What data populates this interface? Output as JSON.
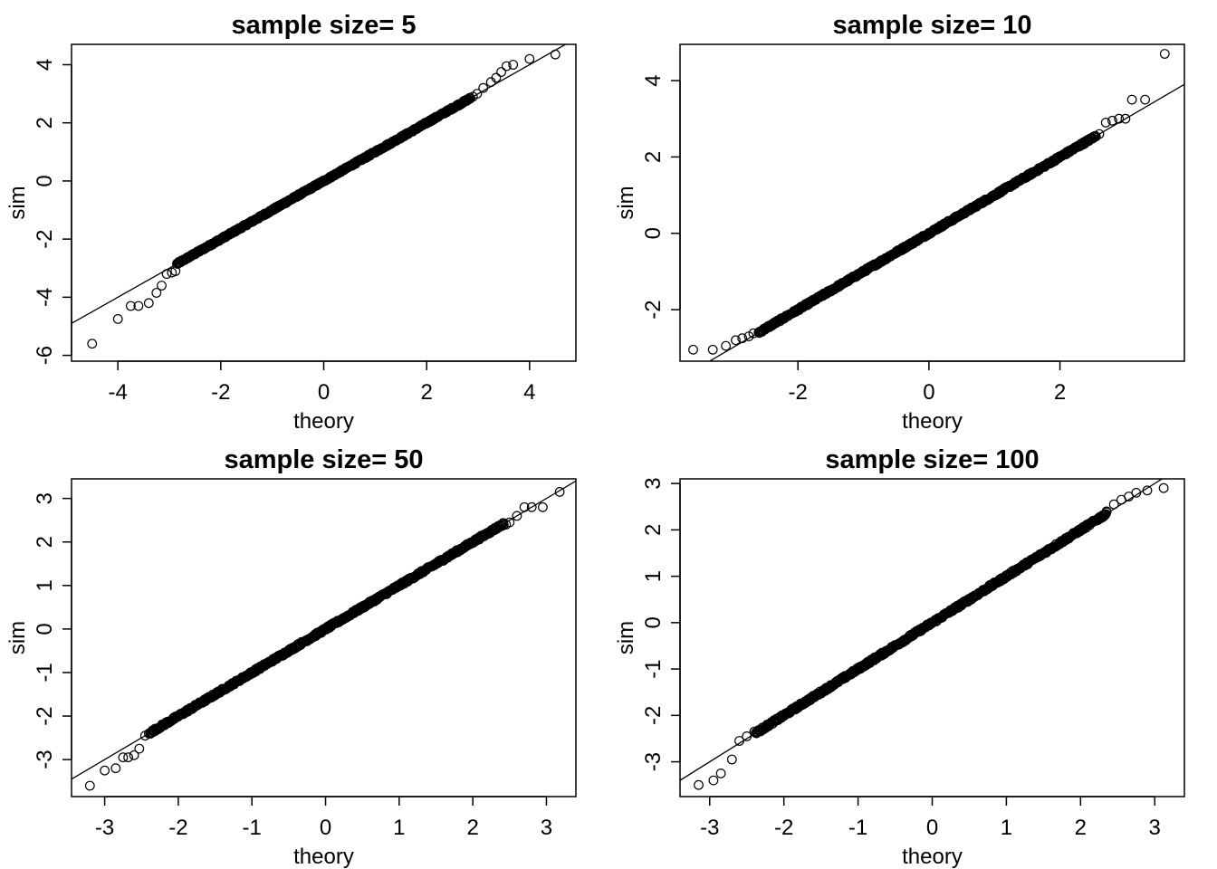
{
  "chart_data": [
    {
      "type": "scatter",
      "title": "sample size= 5",
      "xlabel": "theory",
      "ylabel": "sim",
      "xlim": [
        -4.9,
        4.9
      ],
      "ylim": [
        -6.2,
        4.7
      ],
      "xticks": [
        -4,
        -2,
        0,
        2,
        4
      ],
      "yticks": [
        -6,
        -4,
        -2,
        0,
        2,
        4
      ],
      "xtick_labels": [
        "-4",
        "-2",
        "0",
        "2",
        "4"
      ],
      "ytick_labels": [
        "-6",
        "-4",
        "-2",
        "0",
        "2",
        "4"
      ],
      "reference_line": {
        "intercept": 0.0,
        "slope": 1.0
      },
      "tail_points": [
        {
          "x": -4.5,
          "y": -5.6
        },
        {
          "x": -4.0,
          "y": -4.75
        },
        {
          "x": -3.75,
          "y": -4.3
        },
        {
          "x": -3.6,
          "y": -4.3
        },
        {
          "x": -3.4,
          "y": -4.2
        },
        {
          "x": -3.25,
          "y": -3.85
        },
        {
          "x": -3.15,
          "y": -3.6
        },
        {
          "x": -3.05,
          "y": -3.2
        },
        {
          "x": -2.95,
          "y": -3.15
        },
        {
          "x": -2.88,
          "y": -3.1
        },
        {
          "x": 2.9,
          "y": 2.9
        },
        {
          "x": 2.98,
          "y": 3.0
        },
        {
          "x": 3.1,
          "y": 3.2
        },
        {
          "x": 3.25,
          "y": 3.4
        },
        {
          "x": 3.35,
          "y": 3.55
        },
        {
          "x": 3.45,
          "y": 3.75
        },
        {
          "x": 3.55,
          "y": 3.95
        },
        {
          "x": 3.68,
          "y": 4.0
        },
        {
          "x": 4.0,
          "y": 4.2
        },
        {
          "x": 4.5,
          "y": 4.35
        }
      ],
      "body_range": [
        -2.85,
        2.85
      ]
    },
    {
      "type": "scatter",
      "title": "sample size= 10",
      "xlabel": "theory",
      "ylabel": "sim",
      "xlim": [
        -3.8,
        3.9
      ],
      "ylim": [
        -3.35,
        4.95
      ],
      "xticks": [
        -2,
        0,
        2
      ],
      "yticks": [
        -2,
        0,
        2,
        4
      ],
      "xtick_labels": [
        "-2",
        "0",
        "2"
      ],
      "ytick_labels": [
        "-2",
        "0",
        "2",
        "4"
      ],
      "reference_line": {
        "intercept": 0.0,
        "slope": 1.0
      },
      "tail_points": [
        {
          "x": -3.6,
          "y": -3.05
        },
        {
          "x": -3.3,
          "y": -3.05
        },
        {
          "x": -3.1,
          "y": -2.95
        },
        {
          "x": -2.95,
          "y": -2.8
        },
        {
          "x": -2.85,
          "y": -2.75
        },
        {
          "x": -2.75,
          "y": -2.7
        },
        {
          "x": -2.68,
          "y": -2.62
        },
        {
          "x": 2.6,
          "y": 2.6
        },
        {
          "x": 2.7,
          "y": 2.9
        },
        {
          "x": 2.8,
          "y": 2.95
        },
        {
          "x": 2.9,
          "y": 3.0
        },
        {
          "x": 3.0,
          "y": 3.0
        },
        {
          "x": 3.1,
          "y": 3.5
        },
        {
          "x": 3.3,
          "y": 3.5
        },
        {
          "x": 3.6,
          "y": 4.7
        }
      ],
      "body_range": [
        -2.6,
        2.55
      ]
    },
    {
      "type": "scatter",
      "title": "sample size= 50",
      "xlabel": "theory",
      "ylabel": "sim",
      "xlim": [
        -3.45,
        3.4
      ],
      "ylim": [
        -3.85,
        3.45
      ],
      "xticks": [
        -3,
        -2,
        -1,
        0,
        1,
        2,
        3
      ],
      "yticks": [
        -3,
        -2,
        -1,
        0,
        1,
        2,
        3
      ],
      "xtick_labels": [
        "-3",
        "-2",
        "-1",
        "0",
        "1",
        "2",
        "3"
      ],
      "ytick_labels": [
        "-3",
        "-2",
        "-1",
        "0",
        "1",
        "2",
        "3"
      ],
      "reference_line": {
        "intercept": 0.0,
        "slope": 1.0
      },
      "tail_points": [
        {
          "x": -3.2,
          "y": -3.6
        },
        {
          "x": -3.0,
          "y": -3.25
        },
        {
          "x": -2.85,
          "y": -3.2
        },
        {
          "x": -2.75,
          "y": -2.95
        },
        {
          "x": -2.68,
          "y": -2.95
        },
        {
          "x": -2.6,
          "y": -2.9
        },
        {
          "x": -2.53,
          "y": -2.75
        },
        {
          "x": -2.45,
          "y": -2.45
        },
        {
          "x": -2.4,
          "y": -2.4
        },
        {
          "x": 2.45,
          "y": 2.4
        },
        {
          "x": 2.5,
          "y": 2.45
        },
        {
          "x": 2.6,
          "y": 2.6
        },
        {
          "x": 2.7,
          "y": 2.8
        },
        {
          "x": 2.8,
          "y": 2.8
        },
        {
          "x": 2.95,
          "y": 2.8
        },
        {
          "x": 3.18,
          "y": 3.15
        }
      ],
      "body_range": [
        -2.38,
        2.42
      ]
    },
    {
      "type": "scatter",
      "title": "sample size= 100",
      "xlabel": "theory",
      "ylabel": "sim",
      "xlim": [
        -3.4,
        3.4
      ],
      "ylim": [
        -3.75,
        3.1
      ],
      "xticks": [
        -3,
        -2,
        -1,
        0,
        1,
        2,
        3
      ],
      "yticks": [
        -3,
        -2,
        -1,
        0,
        1,
        2,
        3
      ],
      "xtick_labels": [
        "-3",
        "-2",
        "-1",
        "0",
        "1",
        "2",
        "3"
      ],
      "ytick_labels": [
        "-3",
        "-2",
        "-1",
        "0",
        "1",
        "2",
        "3"
      ],
      "reference_line": {
        "intercept": 0.0,
        "slope": 1.0
      },
      "tail_points": [
        {
          "x": -3.15,
          "y": -3.5
        },
        {
          "x": -2.95,
          "y": -3.4
        },
        {
          "x": -2.85,
          "y": -3.25
        },
        {
          "x": -2.7,
          "y": -2.95
        },
        {
          "x": -2.6,
          "y": -2.55
        },
        {
          "x": -2.5,
          "y": -2.45
        },
        {
          "x": -2.4,
          "y": -2.35
        },
        {
          "x": 2.35,
          "y": 2.4
        },
        {
          "x": 2.45,
          "y": 2.55
        },
        {
          "x": 2.55,
          "y": 2.65
        },
        {
          "x": 2.65,
          "y": 2.72
        },
        {
          "x": 2.75,
          "y": 2.8
        },
        {
          "x": 2.9,
          "y": 2.85
        },
        {
          "x": 3.12,
          "y": 2.9
        }
      ],
      "body_range": [
        -2.38,
        2.35
      ]
    }
  ]
}
